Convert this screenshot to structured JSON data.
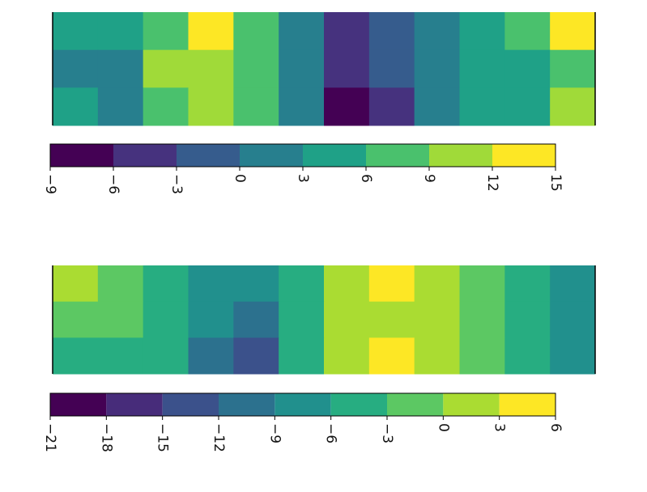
{
  "chart_data": [
    {
      "type": "contour",
      "z": [
        [
          4,
          4,
          7,
          13,
          7,
          2,
          -4,
          -2,
          1,
          5,
          7,
          13
        ],
        [
          2,
          2,
          10,
          10,
          7,
          1,
          -4,
          -2,
          1,
          4,
          5,
          8
        ],
        [
          4,
          1,
          7,
          9,
          7,
          1,
          -7,
          -4,
          1,
          4,
          5,
          10
        ]
      ],
      "levels": [
        {
          "value": -9,
          "label": "−9"
        },
        {
          "value": -6,
          "label": "−6"
        },
        {
          "value": -3,
          "label": "−3"
        },
        0,
        3,
        6,
        9,
        12,
        15
      ],
      "colors": [
        "#440154",
        "#46327e",
        "#365c8d",
        "#277f8e",
        "#1fa187",
        "#4ac16d",
        "#a0da39",
        "#fde725"
      ]
    },
    {
      "type": "contour",
      "z": [
        [
          1,
          -1,
          -5,
          -7,
          -9,
          -6,
          1,
          4,
          1,
          -2,
          -5,
          -8
        ],
        [
          -2,
          -3,
          -6,
          -8,
          -11,
          -5,
          1,
          2,
          1,
          -2,
          -4,
          -9
        ],
        [
          -4,
          -5,
          -6,
          -10,
          -13,
          -6,
          1,
          4,
          1,
          -3,
          -6,
          -9
        ]
      ],
      "levels": [
        {
          "value": -21,
          "label": "−21"
        },
        {
          "value": -18,
          "label": "−18"
        },
        {
          "value": -15,
          "label": "−15"
        },
        {
          "value": -12,
          "label": "−12"
        },
        {
          "value": -9,
          "label": "−9"
        },
        {
          "value": -6,
          "label": "−6"
        },
        {
          "value": -3,
          "label": "−3"
        },
        0,
        3,
        6
      ],
      "colors": [
        "#440154",
        "#472c7a",
        "#3b518b",
        "#2c718e",
        "#21908d",
        "#27ad81",
        "#5cc863",
        "#aadc32",
        "#fde725"
      ]
    }
  ]
}
